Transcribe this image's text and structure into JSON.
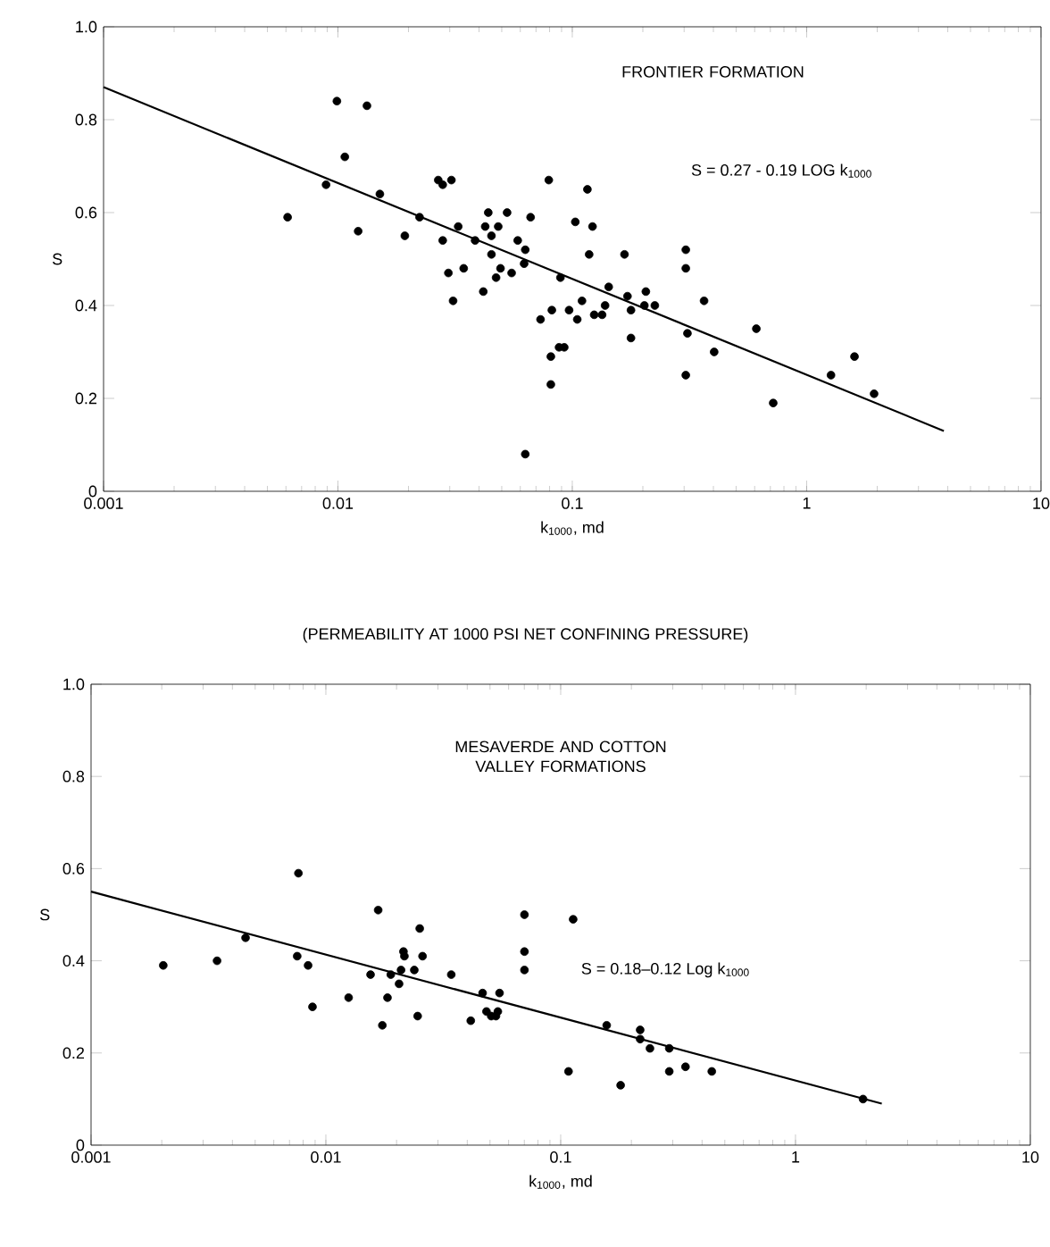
{
  "chart_data": [
    {
      "type": "scatter",
      "title": "FRONTIER FORMATION",
      "xlabel": "k$_{1000}$, md",
      "ylabel": "S",
      "annotations": [
        "S = 0.27 - 0.19 LOG k$_{1000}$",
        "(PERMEABILITY AT 1000 PSI NET CONFINING PRESSURE)"
      ],
      "log": "x",
      "xlim": [
        0.001,
        10
      ],
      "ylim": [
        0,
        1
      ],
      "xticks": [
        0.001,
        0.01,
        0.1,
        1,
        10
      ],
      "yticks": [
        0,
        0.2,
        0.4,
        0.6,
        0.8,
        {
          "value": 1,
          "label": "1.0"
        }
      ],
      "series": [
        {
          "type": "scatter",
          "color": "#000000",
          "marker": "circle",
          "x": [
            0.0061,
            0.0089,
            0.0099,
            0.0107,
            0.0122,
            0.0133,
            0.0151,
            0.0193,
            0.0223,
            0.0268,
            0.028,
            0.0305,
            0.028,
            0.0296,
            0.031,
            0.0326,
            0.0344,
            0.0385,
            0.0417,
            0.0425,
            0.0438,
            0.0452,
            0.0452,
            0.0483,
            0.0473,
            0.0494,
            0.0527,
            0.0551,
            0.0585,
            0.063,
            0.063,
            0.0623,
            0.0664,
            0.0732,
            0.0794,
            0.0818,
            0.081,
            0.081,
            0.0878,
            0.0924,
            0.089,
            0.0969,
            0.103,
            0.105,
            0.11,
            0.116,
            0.118,
            0.122,
            0.124,
            0.134,
            0.138,
            0.143,
            0.167,
            0.172,
            0.178,
            0.178,
            0.206,
            0.203,
            0.225,
            0.305,
            0.305,
            0.31,
            0.305,
            0.365,
            0.403,
            0.61,
            0.72,
            1.27,
            1.6,
            1.94
          ],
          "values": [
            0.59,
            0.66,
            0.84,
            0.72,
            0.56,
            0.83,
            0.64,
            0.55,
            0.59,
            0.67,
            0.66,
            0.67,
            0.54,
            0.47,
            0.41,
            0.57,
            0.48,
            0.54,
            0.43,
            0.57,
            0.6,
            0.55,
            0.51,
            0.57,
            0.46,
            0.48,
            0.6,
            0.47,
            0.54,
            0.52,
            0.08,
            0.49,
            0.59,
            0.37,
            0.67,
            0.39,
            0.29,
            0.23,
            0.31,
            0.31,
            0.46,
            0.39,
            0.58,
            0.37,
            0.41,
            0.65,
            0.51,
            0.57,
            0.38,
            0.38,
            0.4,
            0.44,
            0.51,
            0.42,
            0.33,
            0.39,
            0.43,
            0.4,
            0.4,
            0.52,
            0.48,
            0.34,
            0.25,
            0.41,
            0.3,
            0.35,
            0.19,
            0.25,
            0.29,
            0.21
          ]
        },
        {
          "type": "line",
          "color": "#000000",
          "marker": "none",
          "x": [
            0.001,
            3.85
          ],
          "values": [
            0.87,
            0.13
          ]
        }
      ]
    },
    {
      "type": "scatter",
      "title": "MESAVERDE AND COTTON VALLEY FORMATIONS",
      "xlabel": "k$_{1000}$, md",
      "ylabel": "S",
      "annotations": [
        "S = 0.18–0.12 Log k$_{1000}$"
      ],
      "log": "x",
      "xlim": [
        0.001,
        10
      ],
      "ylim": [
        0,
        1
      ],
      "xticks": [
        0.001,
        0.01,
        0.1,
        1,
        10
      ],
      "yticks": [
        0,
        0.2,
        0.4,
        0.6,
        0.8,
        {
          "value": 1,
          "label": "1.0"
        }
      ],
      "series": [
        {
          "type": "scatter",
          "color": "#000000",
          "marker": "circle",
          "x": [
            0.00203,
            0.00344,
            0.00455,
            0.00764,
            0.00755,
            0.0084,
            0.00877,
            0.0125,
            0.0155,
            0.0167,
            0.0174,
            0.0183,
            0.0189,
            0.0205,
            0.0209,
            0.0214,
            0.0216,
            0.0238,
            0.0246,
            0.0251,
            0.0258,
            0.0342,
            0.0414,
            0.0465,
            0.0483,
            0.0506,
            0.053,
            0.0549,
            0.054,
            0.0701,
            0.0701,
            0.0701,
            0.113,
            0.108,
            0.157,
            0.18,
            0.218,
            0.218,
            0.24,
            0.29,
            0.29,
            0.34,
            0.44,
            1.94
          ],
          "values": [
            0.39,
            0.4,
            0.45,
            0.59,
            0.41,
            0.39,
            0.3,
            0.32,
            0.37,
            0.51,
            0.26,
            0.32,
            0.37,
            0.35,
            0.38,
            0.42,
            0.41,
            0.38,
            0.28,
            0.47,
            0.41,
            0.37,
            0.27,
            0.33,
            0.29,
            0.28,
            0.28,
            0.33,
            0.29,
            0.5,
            0.42,
            0.38,
            0.49,
            0.16,
            0.26,
            0.13,
            0.25,
            0.23,
            0.21,
            0.21,
            0.16,
            0.17,
            0.16,
            0.1
          ]
        },
        {
          "type": "line",
          "color": "#000000",
          "marker": "none",
          "x": [
            0.001,
            2.33
          ],
          "values": [
            0.55,
            0.09
          ]
        }
      ]
    }
  ]
}
